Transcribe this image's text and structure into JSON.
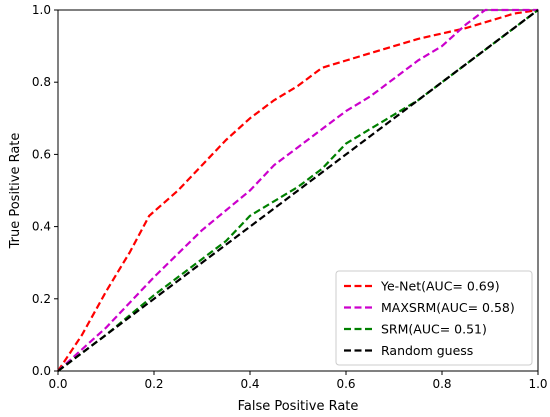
{
  "chart_data": {
    "type": "line",
    "title": "",
    "xlabel": "False Positive Rate",
    "ylabel": "True Positive Rate",
    "xlim": [
      0.0,
      1.0
    ],
    "ylim": [
      0.0,
      1.0
    ],
    "xticks": [
      "0.0",
      "0.2",
      "0.4",
      "0.6",
      "0.8",
      "1.0"
    ],
    "yticks": [
      "0.0",
      "0.2",
      "0.4",
      "0.6",
      "0.8",
      "1.0"
    ],
    "grid": false,
    "legend_position": "lower-right",
    "series": [
      {
        "name": "Ye-Net(AUC= 0.69)",
        "color": "#ff0000",
        "style": "dashed",
        "points": [
          [
            0.0,
            0.0
          ],
          [
            0.05,
            0.1
          ],
          [
            0.1,
            0.22
          ],
          [
            0.15,
            0.33
          ],
          [
            0.19,
            0.43
          ],
          [
            0.25,
            0.5
          ],
          [
            0.3,
            0.57
          ],
          [
            0.35,
            0.64
          ],
          [
            0.4,
            0.7
          ],
          [
            0.45,
            0.75
          ],
          [
            0.5,
            0.79
          ],
          [
            0.55,
            0.84
          ],
          [
            0.6,
            0.86
          ],
          [
            0.65,
            0.88
          ],
          [
            0.7,
            0.9
          ],
          [
            0.75,
            0.92
          ],
          [
            0.8,
            0.935
          ],
          [
            0.85,
            0.95
          ],
          [
            0.9,
            0.97
          ],
          [
            0.95,
            0.99
          ],
          [
            1.0,
            1.0
          ]
        ]
      },
      {
        "name": "MAXSRM(AUC= 0.58)",
        "color": "#cc00cc",
        "style": "dashed",
        "points": [
          [
            0.0,
            0.0
          ],
          [
            0.1,
            0.12
          ],
          [
            0.2,
            0.26
          ],
          [
            0.3,
            0.39
          ],
          [
            0.4,
            0.5
          ],
          [
            0.45,
            0.57
          ],
          [
            0.5,
            0.62
          ],
          [
            0.55,
            0.67
          ],
          [
            0.6,
            0.72
          ],
          [
            0.65,
            0.76
          ],
          [
            0.7,
            0.81
          ],
          [
            0.75,
            0.86
          ],
          [
            0.8,
            0.9
          ],
          [
            0.85,
            0.96
          ],
          [
            0.89,
            1.0
          ],
          [
            0.95,
            1.0
          ],
          [
            1.0,
            1.0
          ]
        ]
      },
      {
        "name": "SRM(AUC= 0.51)",
        "color": "#008000",
        "style": "dashed",
        "points": [
          [
            0.0,
            0.0
          ],
          [
            0.1,
            0.1
          ],
          [
            0.2,
            0.21
          ],
          [
            0.3,
            0.31
          ],
          [
            0.35,
            0.36
          ],
          [
            0.4,
            0.43
          ],
          [
            0.45,
            0.47
          ],
          [
            0.5,
            0.51
          ],
          [
            0.55,
            0.56
          ],
          [
            0.6,
            0.63
          ],
          [
            0.65,
            0.67
          ],
          [
            0.7,
            0.71
          ],
          [
            0.75,
            0.75
          ],
          [
            0.8,
            0.8
          ],
          [
            0.85,
            0.85
          ],
          [
            0.9,
            0.9
          ],
          [
            0.95,
            0.95
          ],
          [
            1.0,
            1.0
          ]
        ]
      },
      {
        "name": "Random guess",
        "color": "#000000",
        "style": "dashed",
        "points": [
          [
            0.0,
            0.0
          ],
          [
            1.0,
            1.0
          ]
        ]
      }
    ]
  }
}
